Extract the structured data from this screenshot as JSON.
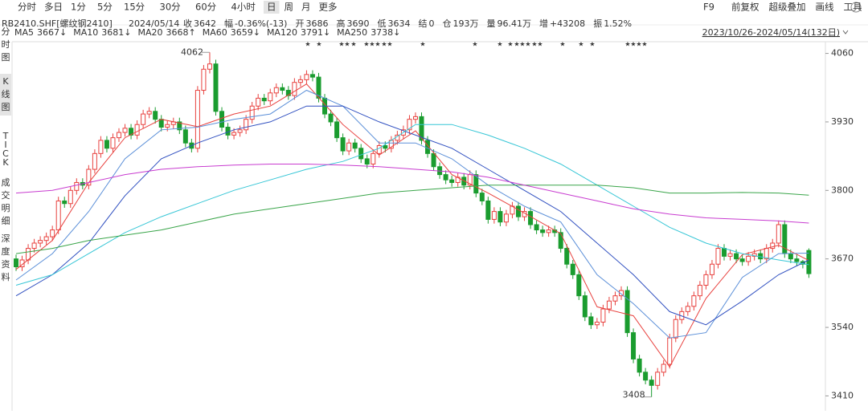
{
  "toolbar": {
    "tabs": [
      {
        "label": "分时"
      },
      {
        "label": "多日"
      },
      {
        "label": "1分"
      },
      {
        "label": "5分"
      },
      {
        "label": "15分"
      },
      {
        "label": "30分"
      },
      {
        "label": "60分"
      },
      {
        "label": "4小时"
      },
      {
        "label": "日",
        "active": true
      },
      {
        "label": "周"
      },
      {
        "label": "月"
      },
      {
        "label": "更多"
      }
    ],
    "right": [
      "F9",
      "前复权",
      "超级叠加",
      "画线",
      "工具"
    ]
  },
  "sidebar": [
    {
      "label": "分时图"
    },
    {
      "label": "K线图",
      "active": true
    },
    {
      "label": "TICK"
    },
    {
      "label": "成交明细"
    },
    {
      "label": "深度资料"
    }
  ],
  "quote": {
    "symbol": "RB2410.SHF[螺纹钢2410]",
    "date": "2024/05/14",
    "items": [
      {
        "label": "收",
        "value": "3642",
        "color": "#333333"
      },
      {
        "label": "幅",
        "value": "-0.36%(-13)",
        "color": "#1a9c2f"
      },
      {
        "label": "开",
        "value": "3686",
        "color": "#e8413e"
      },
      {
        "label": "高",
        "value": "3690",
        "color": "#e8413e"
      },
      {
        "label": "低",
        "value": "3634",
        "color": "#1a9c2f"
      },
      {
        "label": "结",
        "value": "0",
        "color": "#1a9c2f"
      },
      {
        "label": "仓",
        "value": "193万",
        "color": "#333333"
      },
      {
        "label": "量",
        "value": "96.41万",
        "color": "#333333"
      },
      {
        "label": "增",
        "value": "+43208",
        "color": "#e8413e"
      },
      {
        "label": "振",
        "value": "1.52%",
        "color": "#333333"
      }
    ],
    "range": "2023/10/26-2024/05/14(132日)"
  },
  "chart_data": {
    "type": "candlestick",
    "up_color": "#e8413e",
    "down_color": "#1a9c2f",
    "ylim": [
      3400,
      4070
    ],
    "yticks": [
      4060,
      3930,
      3800,
      3670,
      3540,
      3410
    ],
    "open": [
      3670,
      3655,
      3668,
      3690,
      3700,
      3705,
      3712,
      3725,
      3780,
      3775,
      3800,
      3815,
      3810,
      3840,
      3870,
      3895,
      3880,
      3900,
      3910,
      3918,
      3905,
      3925,
      3945,
      3950,
      3935,
      3920,
      3925,
      3930,
      3915,
      3890,
      3880,
      3990,
      4030,
      4040,
      3950,
      3920,
      3905,
      3910,
      3915,
      3935,
      3960,
      3975,
      3970,
      3985,
      3995,
      3990,
      3980,
      4005,
      4010,
      4020,
      4015,
      3975,
      3945,
      3930,
      3900,
      3875,
      3890,
      3880,
      3860,
      3850,
      3870,
      3885,
      3880,
      3895,
      3905,
      3915,
      3935,
      3940,
      3895,
      3870,
      3845,
      3830,
      3820,
      3815,
      3825,
      3810,
      3830,
      3795,
      3780,
      3745,
      3760,
      3740,
      3755,
      3770,
      3750,
      3760,
      3735,
      3725,
      3720,
      3725,
      3720,
      3690,
      3660,
      3640,
      3600,
      3560,
      3545,
      3550,
      3575,
      3590,
      3600,
      3610,
      3530,
      3480,
      3455,
      3440,
      3430,
      3455,
      3470,
      3520,
      3555,
      3570,
      3580,
      3600,
      3620,
      3640,
      3660,
      3690,
      3675,
      3680,
      3670,
      3665,
      3675,
      3680,
      3670,
      3690,
      3700,
      3735,
      3680,
      3670,
      3665,
      3686
    ],
    "high": [
      3678,
      3676,
      3698,
      3708,
      3713,
      3720,
      3733,
      3788,
      3788,
      3808,
      3823,
      3823,
      3848,
      3878,
      3903,
      3903,
      3908,
      3918,
      3926,
      3926,
      3933,
      3953,
      3958,
      3958,
      3943,
      3933,
      3938,
      3938,
      3923,
      3898,
      3998,
      4038,
      4062,
      4048,
      3958,
      3928,
      3918,
      3923,
      3943,
      3968,
      3983,
      3983,
      3993,
      4003,
      4003,
      3998,
      4013,
      4018,
      4028,
      4028,
      4023,
      3983,
      3953,
      3938,
      3908,
      3898,
      3898,
      3888,
      3868,
      3878,
      3893,
      3893,
      3903,
      3913,
      3923,
      3943,
      3948,
      3948,
      3903,
      3878,
      3853,
      3838,
      3828,
      3833,
      3833,
      3838,
      3838,
      3803,
      3788,
      3768,
      3768,
      3763,
      3778,
      3778,
      3768,
      3768,
      3743,
      3733,
      3733,
      3733,
      3728,
      3698,
      3668,
      3648,
      3608,
      3568,
      3558,
      3583,
      3598,
      3608,
      3618,
      3618,
      3538,
      3488,
      3463,
      3448,
      3463,
      3478,
      3528,
      3563,
      3578,
      3588,
      3608,
      3628,
      3648,
      3668,
      3698,
      3698,
      3688,
      3688,
      3678,
      3683,
      3688,
      3688,
      3698,
      3708,
      3743,
      3743,
      3688,
      3678,
      3668,
      3690
    ],
    "low": [
      3647,
      3647,
      3660,
      3682,
      3692,
      3697,
      3704,
      3717,
      3767,
      3767,
      3792,
      3802,
      3802,
      3832,
      3862,
      3872,
      3872,
      3892,
      3902,
      3897,
      3897,
      3917,
      3937,
      3927,
      3912,
      3912,
      3917,
      3907,
      3882,
      3872,
      3872,
      3982,
      4022,
      3942,
      3912,
      3897,
      3897,
      3902,
      3907,
      3927,
      3952,
      3962,
      3962,
      3977,
      3982,
      3972,
      3972,
      3997,
      4002,
      4007,
      3967,
      3937,
      3922,
      3892,
      3867,
      3867,
      3872,
      3852,
      3842,
      3842,
      3862,
      3872,
      3872,
      3887,
      3897,
      3907,
      3927,
      3887,
      3862,
      3837,
      3822,
      3812,
      3807,
      3807,
      3802,
      3802,
      3787,
      3772,
      3737,
      3737,
      3732,
      3732,
      3747,
      3742,
      3742,
      3727,
      3717,
      3712,
      3712,
      3712,
      3682,
      3652,
      3632,
      3592,
      3552,
      3537,
      3537,
      3542,
      3567,
      3582,
      3592,
      3522,
      3472,
      3447,
      3432,
      3408,
      3422,
      3447,
      3462,
      3512,
      3547,
      3562,
      3572,
      3592,
      3612,
      3632,
      3652,
      3667,
      3667,
      3662,
      3657,
      3657,
      3667,
      3662,
      3662,
      3682,
      3692,
      3672,
      3662,
      3657,
      3652,
      3634
    ],
    "close": [
      3655,
      3668,
      3690,
      3700,
      3705,
      3712,
      3725,
      3780,
      3775,
      3800,
      3815,
      3810,
      3840,
      3870,
      3895,
      3880,
      3900,
      3910,
      3918,
      3905,
      3925,
      3945,
      3950,
      3935,
      3920,
      3925,
      3930,
      3915,
      3890,
      3880,
      3990,
      4030,
      4040,
      3950,
      3920,
      3905,
      3910,
      3915,
      3935,
      3960,
      3975,
      3970,
      3985,
      3995,
      3990,
      3980,
      4005,
      4010,
      4020,
      4015,
      3975,
      3945,
      3930,
      3900,
      3875,
      3890,
      3880,
      3860,
      3850,
      3870,
      3885,
      3880,
      3895,
      3905,
      3915,
      3935,
      3940,
      3895,
      3870,
      3845,
      3830,
      3820,
      3815,
      3825,
      3810,
      3830,
      3795,
      3780,
      3745,
      3760,
      3740,
      3755,
      3770,
      3750,
      3760,
      3735,
      3725,
      3720,
      3725,
      3720,
      3690,
      3660,
      3640,
      3600,
      3560,
      3545,
      3550,
      3575,
      3590,
      3600,
      3610,
      3530,
      3480,
      3455,
      3440,
      3430,
      3455,
      3470,
      3520,
      3555,
      3570,
      3580,
      3600,
      3620,
      3640,
      3660,
      3690,
      3675,
      3680,
      3670,
      3665,
      3675,
      3680,
      3670,
      3690,
      3700,
      3735,
      3680,
      3670,
      3665,
      3660,
      3642
    ],
    "ma_x": [
      0,
      6,
      12,
      18,
      24,
      30,
      36,
      42,
      48,
      54,
      60,
      66,
      72,
      78,
      84,
      90,
      96,
      102,
      108,
      114,
      120,
      126,
      131
    ],
    "series": [
      {
        "name": "MA5",
        "label": "3667↓",
        "color": "#e8413e",
        "values": [
          3650,
          3705,
          3815,
          3900,
          3935,
          3921,
          3945,
          3960,
          4002,
          3925,
          3867,
          3913,
          3830,
          3795,
          3757,
          3718,
          3579,
          3562,
          3465,
          3595,
          3678,
          3696,
          3667
        ]
      },
      {
        "name": "MA10",
        "label": "3681↓",
        "color": "#5b8fd8",
        "values": [
          3630,
          3680,
          3760,
          3860,
          3915,
          3920,
          3935,
          3945,
          3990,
          3960,
          3890,
          3890,
          3860,
          3810,
          3770,
          3740,
          3640,
          3585,
          3520,
          3530,
          3635,
          3680,
          3681
        ]
      },
      {
        "name": "MA20",
        "label": "3668↑",
        "color": "#2f4fc0",
        "values": [
          3600,
          3640,
          3700,
          3790,
          3860,
          3890,
          3915,
          3930,
          3960,
          3960,
          3930,
          3905,
          3880,
          3840,
          3800,
          3760,
          3700,
          3640,
          3570,
          3545,
          3590,
          3640,
          3668
        ]
      },
      {
        "name": "MA60",
        "label": "3659↓",
        "color": "#36c6d6",
        "values": [
          3620,
          3640,
          3680,
          3720,
          3750,
          3775,
          3800,
          3820,
          3840,
          3855,
          3880,
          3925,
          3925,
          3905,
          3880,
          3850,
          3810,
          3770,
          3730,
          3700,
          3680,
          3668,
          3659
        ]
      },
      {
        "name": "MA120",
        "label": "3791↓",
        "color": "#3aa54a",
        "values": [
          3680,
          3690,
          3705,
          3715,
          3725,
          3740,
          3755,
          3765,
          3775,
          3785,
          3795,
          3800,
          3805,
          3810,
          3810,
          3810,
          3810,
          3805,
          3795,
          3795,
          3796,
          3795,
          3791
        ]
      },
      {
        "name": "MA250",
        "label": "3738↓",
        "color": "#c83cd0",
        "values": [
          3795,
          3800,
          3815,
          3830,
          3840,
          3845,
          3848,
          3850,
          3850,
          3848,
          3845,
          3840,
          3835,
          3825,
          3810,
          3795,
          3780,
          3765,
          3755,
          3748,
          3745,
          3742,
          3738
        ]
      }
    ],
    "annotations": [
      {
        "candle": 32,
        "field": "high"
      },
      {
        "candle": 105,
        "field": "low"
      }
    ]
  }
}
